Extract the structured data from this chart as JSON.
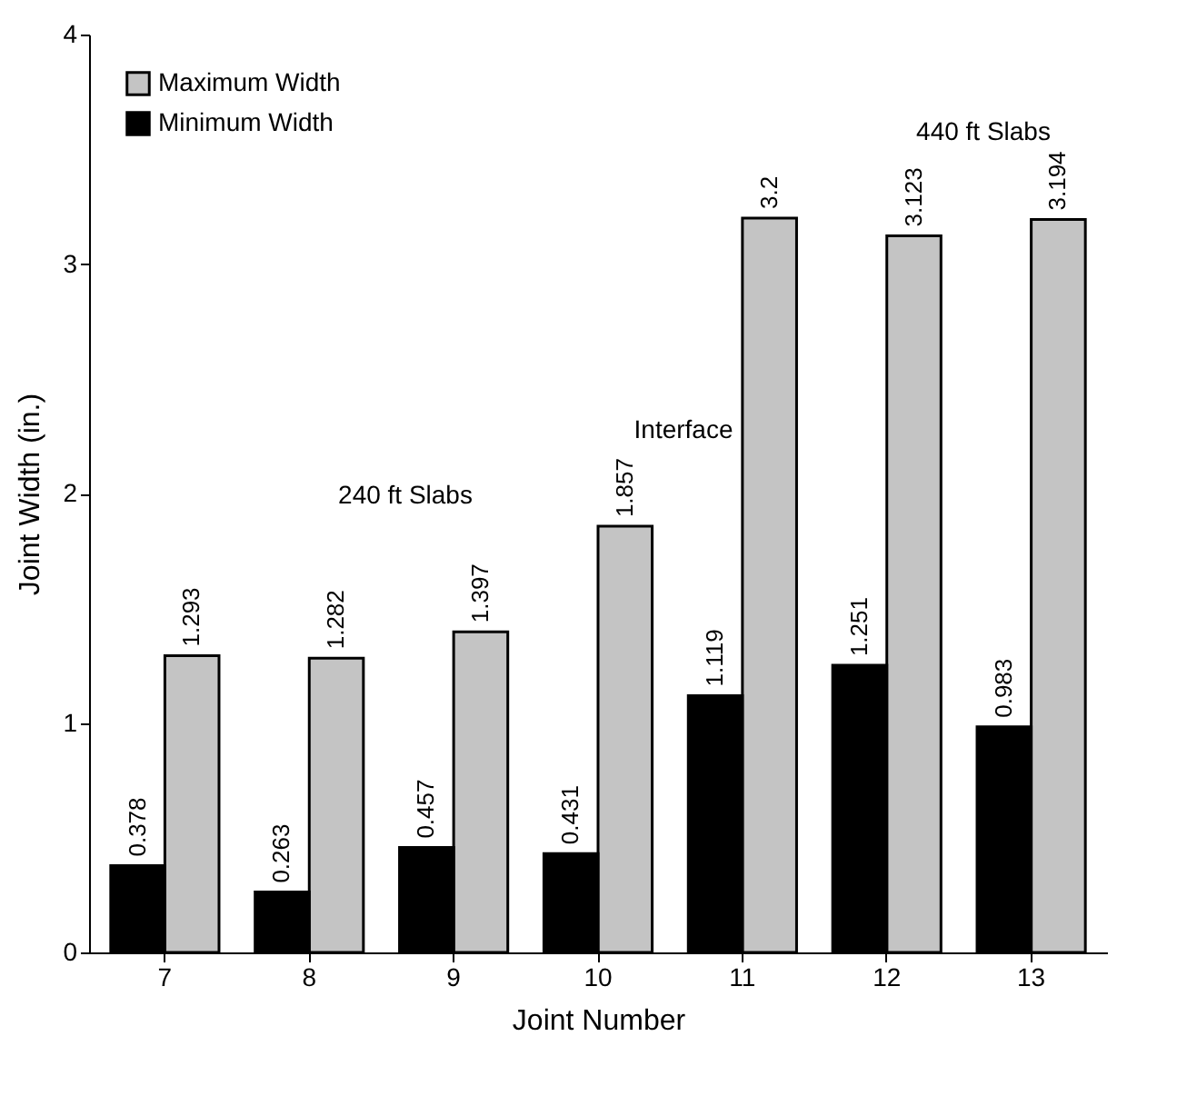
{
  "chart_data": {
    "type": "bar",
    "xlabel": "Joint Number",
    "ylabel": "Joint Width (in.)",
    "categories": [
      "7",
      "8",
      "9",
      "10",
      "11",
      "12",
      "13"
    ],
    "series": [
      {
        "name": "Maximum Width",
        "color": "#c4c4c4",
        "values": [
          1.293,
          1.282,
          1.397,
          1.857,
          3.2,
          3.123,
          3.194
        ]
      },
      {
        "name": "Minimum Width",
        "color": "#000000",
        "values": [
          0.378,
          0.263,
          0.457,
          0.431,
          1.119,
          1.251,
          0.983
        ]
      }
    ],
    "ylim": [
      0,
      4
    ],
    "yticks": [
      0,
      1,
      2,
      3,
      4
    ],
    "grid": false,
    "legend": "top left",
    "data_labels": true,
    "annotations": [
      "240 ft Slabs",
      "Interface",
      "440 ft Slabs"
    ]
  }
}
